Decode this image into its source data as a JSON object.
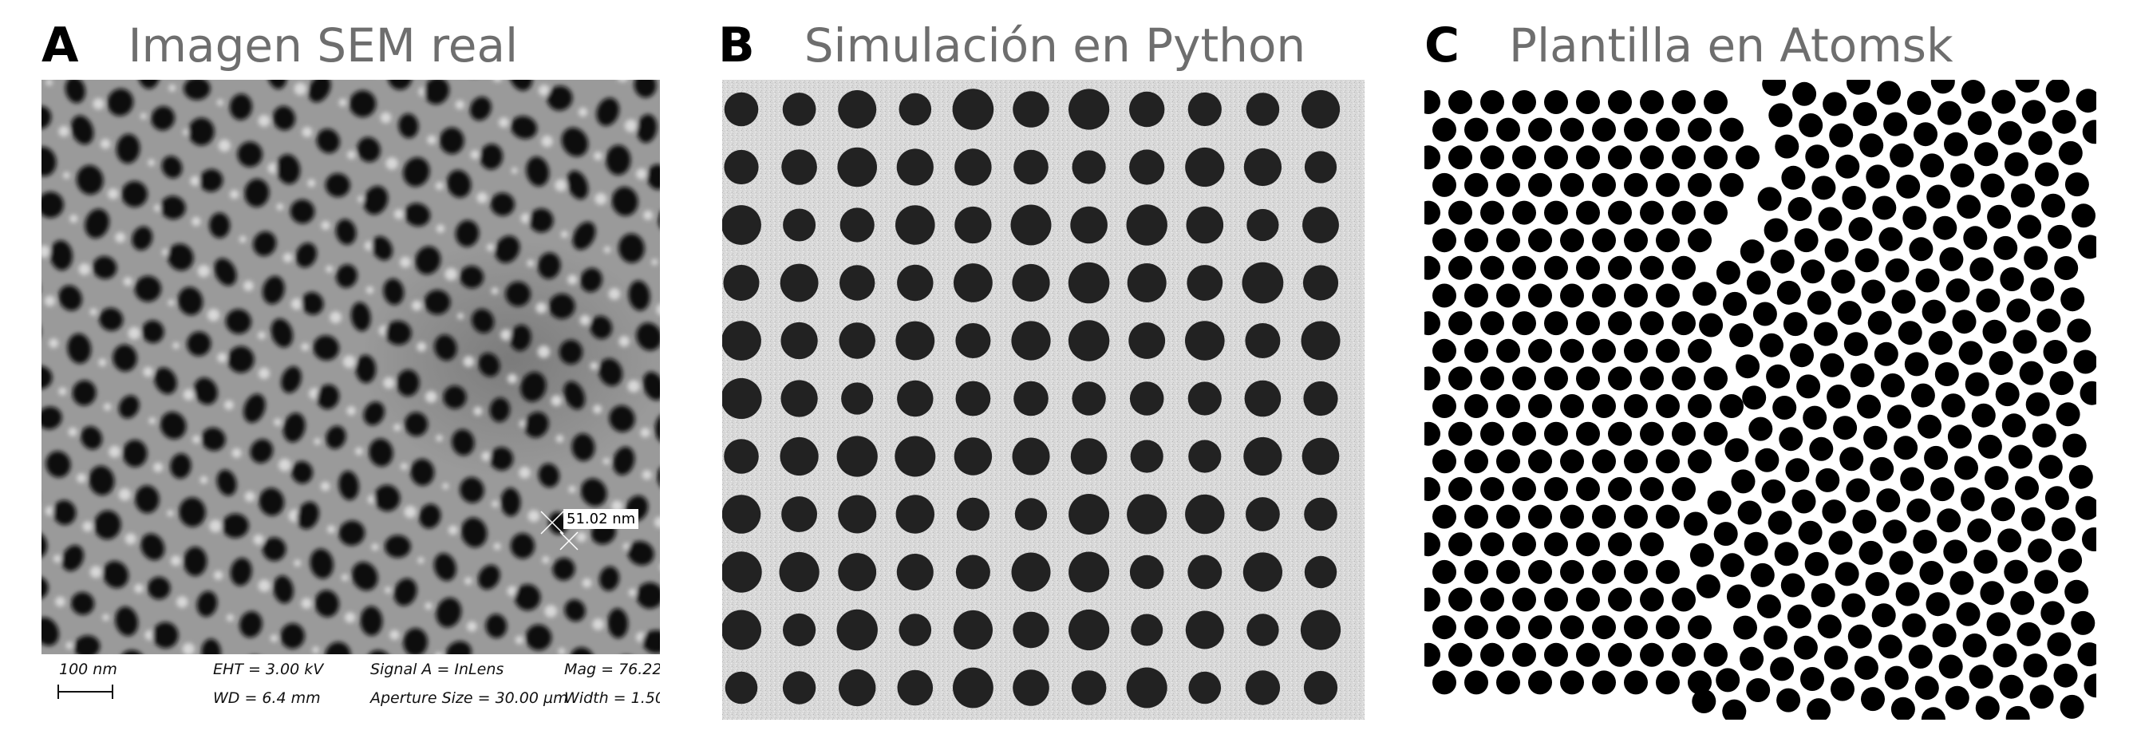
{
  "panels": [
    {
      "letter": "A",
      "title": "Imagen SEM real"
    },
    {
      "letter": "B",
      "title": "Simulación en Python"
    },
    {
      "letter": "C",
      "title": "Plantilla en Atomsk"
    }
  ],
  "sem_info": {
    "scale_label": "100 nm",
    "eht": "EHT =  3.00 kV",
    "wd": "WD =  6.4 mm",
    "signal": "Signal A = InLens",
    "aperture": "Aperture Size = 30.00 µm",
    "mag": "Mag =   76.22",
    "width": "Width = 1.50",
    "measurement": "51.02 nm"
  },
  "colors": {
    "sem_background": "#9a9a9a",
    "pore": "#0b0b0b",
    "python_background": "#d9d9d9",
    "python_pore": "#222222",
    "atomsk_pore": "#000000",
    "title_gray": "#6e6e6e"
  }
}
